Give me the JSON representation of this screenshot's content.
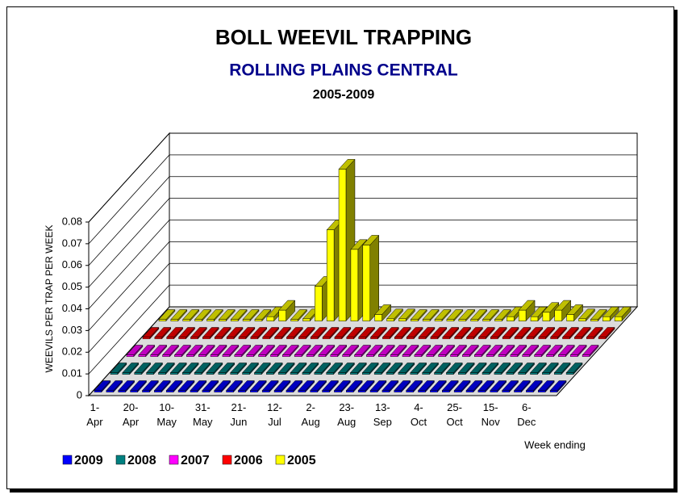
{
  "chart_data": {
    "type": "bar3d",
    "title": "BOLL WEEVIL TRAPPING",
    "subtitle": "ROLLING PLAINS CENTRAL",
    "years": "2005-2009",
    "y_label": "WEEVILS PER TRAP PER WEEK",
    "x_label": "Week ending",
    "categories": [
      "1-Apr",
      null,
      null,
      "20-Apr",
      null,
      null,
      "10-May",
      null,
      null,
      "31-May",
      null,
      null,
      "21-Jun",
      null,
      null,
      "12-Jul",
      null,
      null,
      "2-Aug",
      null,
      null,
      "23-Aug",
      null,
      null,
      "13-Sep",
      null,
      null,
      "4-Oct",
      null,
      null,
      "25-Oct",
      null,
      null,
      "15-Nov",
      null,
      null,
      "6-Dec",
      null,
      null
    ],
    "ylim": [
      0,
      0.08
    ],
    "yticks": [
      0,
      0.01,
      0.02,
      0.03,
      0.04,
      0.05,
      0.06,
      0.07,
      0.08
    ],
    "grid": true,
    "legend": "bottom",
    "series": [
      {
        "name": "2009",
        "color": "#0000ff",
        "values": [
          0,
          0,
          0,
          0,
          0,
          0,
          0,
          0,
          0,
          0,
          0,
          0,
          0,
          0,
          0,
          0,
          0,
          0,
          0,
          0,
          0,
          0,
          0,
          0,
          0,
          0,
          0,
          0,
          0,
          0,
          0,
          0,
          0,
          0,
          0,
          0,
          0,
          0,
          0
        ]
      },
      {
        "name": "2008",
        "color": "#008080",
        "values": [
          0,
          0,
          0,
          0,
          0,
          0,
          0,
          0,
          0,
          0,
          0,
          0,
          0,
          0,
          0,
          0,
          0,
          0,
          0,
          0,
          0,
          0,
          0,
          0,
          0,
          0,
          0,
          0,
          0,
          0,
          0,
          0,
          0,
          0,
          0,
          0,
          0,
          0,
          0
        ]
      },
      {
        "name": "2007",
        "color": "#ff00ff",
        "values": [
          0,
          0,
          0,
          0,
          0,
          0,
          0,
          0,
          0,
          0,
          0,
          0,
          0,
          0,
          0,
          0,
          0,
          0,
          0,
          0,
          0,
          0,
          0,
          0,
          0,
          0,
          0,
          0,
          0,
          0,
          0,
          0,
          0,
          0,
          0,
          0,
          0,
          0,
          0
        ]
      },
      {
        "name": "2006",
        "color": "#ff0000",
        "values": [
          0,
          0,
          0,
          0,
          0,
          0,
          0,
          0,
          0,
          0,
          0,
          0,
          0,
          0,
          0,
          0,
          0,
          0,
          0,
          0,
          0,
          0,
          0,
          0,
          0,
          0,
          0,
          0,
          0,
          0,
          0,
          0,
          0,
          0,
          0,
          0,
          0,
          0,
          0
        ]
      },
      {
        "name": "2005",
        "color": "#ffff00",
        "values": [
          0,
          0,
          0,
          0,
          0,
          0,
          0,
          0,
          0,
          0.002,
          0.005,
          0,
          0.001,
          0.016,
          0.042,
          0.07,
          0.033,
          0.035,
          0.003,
          0.001,
          0.001,
          0,
          0,
          0,
          0,
          0,
          0,
          0,
          0,
          0.002,
          0.005,
          0.002,
          0.004,
          0.005,
          0.003,
          0.001,
          0,
          0.002,
          0.002
        ]
      }
    ]
  }
}
